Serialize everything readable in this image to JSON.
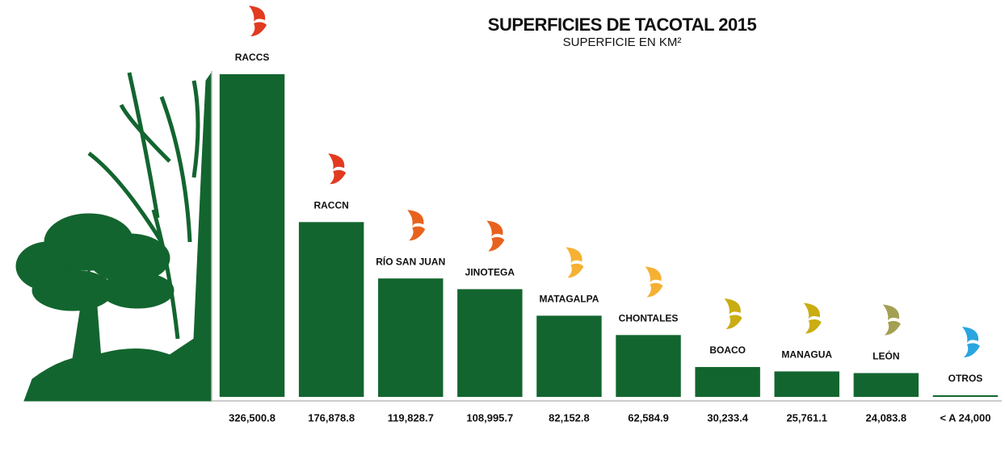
{
  "chart_data": {
    "type": "bar",
    "title": "SUPERFICIES DE TACOTAL 2015",
    "subtitle": "SUPERFICIE EN KM²",
    "categories": [
      "RACCS",
      "RACCN",
      "RÍO SAN JUAN",
      "JINOTEGA",
      "MATAGALPA",
      "CHONTALES",
      "BOACO",
      "MANAGUA",
      "LEÓN",
      "OTROS"
    ],
    "values": [
      326500.8,
      176878.8,
      119828.7,
      108995.7,
      82152.8,
      62584.9,
      30233.4,
      25761.1,
      24083.8,
      null
    ],
    "value_labels": [
      "326,500.8",
      "176,878.8",
      "119,828.7",
      "108,995.7",
      "82,152.8",
      "62,584.9",
      "30,233.4",
      "25,761.1",
      "24,083.8",
      "< A 24,000"
    ],
    "color": "#13652f",
    "icon_colors": [
      "#e23a1f",
      "#e23a1f",
      "#e8621e",
      "#e8621e",
      "#f6b133",
      "#f6b133",
      "#c9ad12",
      "#c9ad12",
      "#a3a052",
      "#2aa5e0"
    ]
  }
}
